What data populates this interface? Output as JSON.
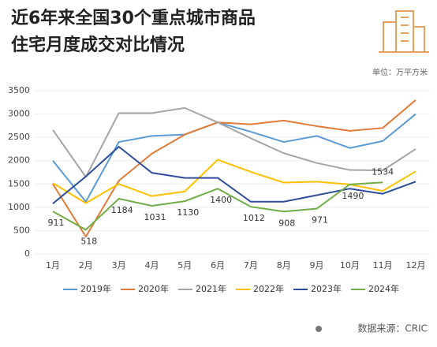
{
  "chart_data": {
    "type": "line",
    "title": [
      "近6年来全国30个重点城市商品",
      "住宅月度成交对比情况"
    ],
    "unit": "单位：万平方米",
    "source": "数据来源：CRIC",
    "categories": [
      "1月",
      "2月",
      "3月",
      "4月",
      "5月",
      "6月",
      "7月",
      "8月",
      "9月",
      "10月",
      "11月",
      "12月"
    ],
    "ylim": [
      0,
      3500
    ],
    "yticks": [
      0,
      500,
      1000,
      1500,
      2000,
      2500,
      3000,
      3500
    ],
    "grid": true,
    "legend": "bottom",
    "series": [
      {
        "name": "2019年",
        "color": "#5b9bd5",
        "values": [
          2000,
          1120,
          2400,
          2530,
          2560,
          2820,
          2620,
          2400,
          2530,
          2270,
          2420,
          3000
        ]
      },
      {
        "name": "2020年",
        "color": "#e07b39",
        "values": [
          1500,
          370,
          1570,
          2150,
          2560,
          2820,
          2780,
          2860,
          2740,
          2640,
          2700,
          3300
        ]
      },
      {
        "name": "2021年",
        "color": "#a5a5a5",
        "values": [
          2660,
          1650,
          3020,
          3020,
          3130,
          2820,
          2480,
          2160,
          1950,
          1800,
          1790,
          2250
        ]
      },
      {
        "name": "2022年",
        "color": "#ffc000",
        "values": [
          1520,
          1090,
          1500,
          1240,
          1340,
          2020,
          1760,
          1530,
          1550,
          1490,
          1350,
          1770
        ]
      },
      {
        "name": "2023年",
        "color": "#2e4d9b",
        "values": [
          1080,
          1660,
          2300,
          1740,
          1630,
          1630,
          1120,
          1120,
          1260,
          1400,
          1290,
          1550
        ]
      },
      {
        "name": "2024年",
        "color": "#70ad47",
        "values": [
          911,
          518,
          1184,
          1031,
          1130,
          1400,
          1012,
          908,
          971,
          1490,
          1534,
          null
        ],
        "data_labels": true
      }
    ]
  }
}
